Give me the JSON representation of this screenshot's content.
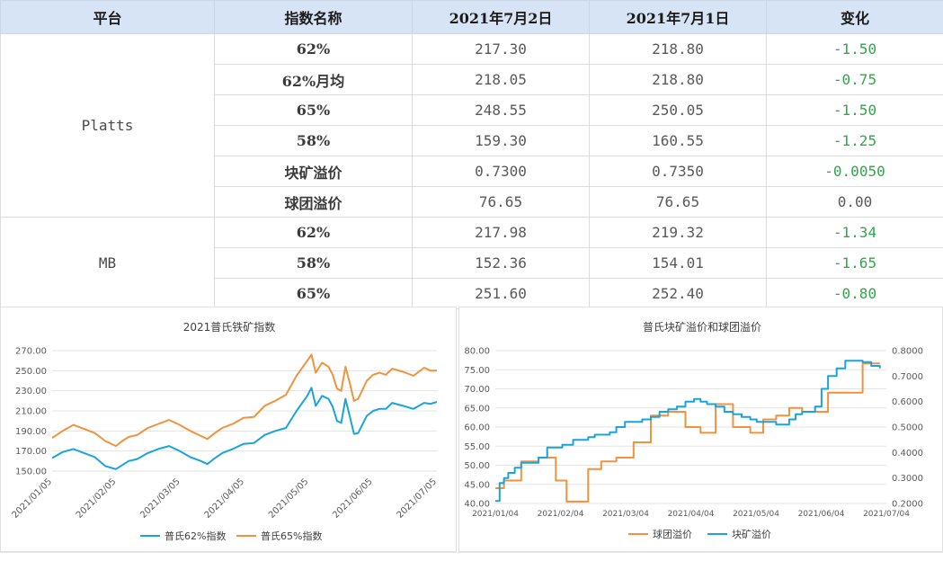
{
  "table": {
    "headers": [
      "平台",
      "指数名称",
      "2021年7月2日",
      "2021年7月1日",
      "变化"
    ],
    "groups": [
      {
        "platform": "Platts",
        "rows": [
          {
            "name": "62%",
            "jul2": "217.30",
            "jul1": "218.80",
            "change": "-1.50"
          },
          {
            "name": "62%月均",
            "jul2": "218.05",
            "jul1": "218.80",
            "change": "-0.75"
          },
          {
            "name": "65%",
            "jul2": "248.55",
            "jul1": "250.05",
            "change": "-1.50"
          },
          {
            "name": "58%",
            "jul2": "159.30",
            "jul1": "160.55",
            "change": "-1.25"
          },
          {
            "name": "块矿溢价",
            "jul2": "0.7300",
            "jul1": "0.7350",
            "change": "-0.0050"
          },
          {
            "name": "球团溢价",
            "jul2": "76.65",
            "jul1": "76.65",
            "change": "0.00"
          }
        ]
      },
      {
        "platform": "MB",
        "rows": [
          {
            "name": "62%",
            "jul2": "217.98",
            "jul1": "219.32",
            "change": "-1.34"
          },
          {
            "name": "58%",
            "jul2": "152.36",
            "jul1": "154.01",
            "change": "-1.65"
          },
          {
            "name": "65%",
            "jul2": "251.60",
            "jul1": "252.40",
            "change": "-0.80"
          }
        ]
      }
    ]
  },
  "colors": {
    "orange": "#f0923e",
    "blue": "#1aa3dd",
    "negative": "#2fa84a"
  },
  "chart_data": [
    {
      "type": "line",
      "title": "2021普氏铁矿指数",
      "xlabel": "",
      "ylabel": "",
      "x_ticks": [
        "2021/01/05",
        "2021/02/05",
        "2021/03/05",
        "2021/04/05",
        "2021/05/05",
        "2021/06/05",
        "2021/07/05"
      ],
      "ylim": [
        150,
        270
      ],
      "y_ticks": [
        "150.00",
        "170.00",
        "190.00",
        "210.00",
        "230.00",
        "250.00",
        "270.00"
      ],
      "grid": true,
      "legend": "bottom",
      "series": [
        {
          "name": "普氏62%指数",
          "color": "#1aa3dd",
          "x": [
            0,
            5,
            10,
            15,
            20,
            25,
            30,
            33,
            36,
            40,
            45,
            50,
            55,
            60,
            65,
            70,
            73,
            76,
            80,
            85,
            90,
            95,
            100,
            105,
            110,
            115,
            120,
            122,
            124,
            127,
            130,
            132,
            134,
            136,
            138,
            140,
            142,
            144,
            148,
            151,
            154,
            157,
            160,
            165,
            170,
            175,
            178,
            181
          ],
          "y": [
            163,
            169,
            172,
            168,
            164,
            155,
            152,
            156,
            160,
            162,
            168,
            172,
            175,
            170,
            164,
            160,
            157,
            162,
            168,
            172,
            177,
            178,
            186,
            190,
            193,
            210,
            225,
            233,
            215,
            225,
            222,
            214,
            200,
            198,
            222,
            205,
            187,
            188,
            205,
            210,
            212,
            212,
            218,
            215,
            212,
            218,
            217,
            219
          ]
        },
        {
          "name": "普氏65%指数",
          "color": "#f0923e",
          "x": [
            0,
            5,
            10,
            15,
            20,
            25,
            30,
            33,
            36,
            40,
            45,
            50,
            55,
            60,
            65,
            70,
            73,
            76,
            80,
            85,
            90,
            95,
            100,
            105,
            110,
            115,
            120,
            122,
            124,
            127,
            130,
            132,
            134,
            136,
            138,
            140,
            142,
            144,
            148,
            151,
            154,
            157,
            160,
            165,
            170,
            175,
            178,
            181
          ],
          "y": [
            183,
            190,
            196,
            192,
            188,
            180,
            175,
            180,
            184,
            186,
            193,
            197,
            201,
            196,
            190,
            185,
            182,
            187,
            193,
            197,
            203,
            204,
            215,
            220,
            226,
            245,
            260,
            266,
            248,
            258,
            254,
            246,
            232,
            230,
            254,
            238,
            220,
            222,
            240,
            246,
            248,
            246,
            252,
            249,
            245,
            253,
            250,
            250
          ]
        }
      ]
    },
    {
      "type": "line",
      "title": "普氏块矿溢价和球团溢价",
      "xlabel": "",
      "ylabel": "",
      "x_ticks": [
        "2021/01/04",
        "2021/02/04",
        "2021/03/04",
        "2021/04/04",
        "2021/05/04",
        "2021/06/04",
        "2021/07/04"
      ],
      "ylim": [
        40,
        80
      ],
      "y_ticks": [
        "40.00",
        "45.00",
        "50.00",
        "55.00",
        "60.00",
        "65.00",
        "70.00",
        "75.00",
        "80.00"
      ],
      "y2lim": [
        0.2,
        0.8
      ],
      "y2_ticks": [
        "0.2000",
        "0.3000",
        "0.4000",
        "0.5000",
        "0.6000",
        "0.7000",
        "0.8000"
      ],
      "grid": true,
      "legend": "bottom",
      "series": [
        {
          "name": "球团溢价",
          "color": "#f0923e",
          "axis": "left",
          "x": [
            0,
            2,
            4,
            6,
            9,
            12,
            16,
            20,
            24,
            28,
            31,
            33,
            36,
            40,
            43,
            46,
            49,
            53,
            56,
            60,
            64,
            68,
            72,
            76,
            80,
            84,
            88,
            92,
            95,
            98,
            102,
            106,
            110,
            114,
            118,
            121,
            124,
            127,
            130,
            133,
            136,
            139,
            142,
            145,
            148,
            151,
            154,
            158,
            162,
            166,
            170,
            174,
            178
          ],
          "y": [
            44,
            44,
            46,
            46,
            46,
            51,
            51,
            52,
            52,
            46,
            46,
            40.5,
            40.5,
            40.5,
            49,
            49,
            51,
            51,
            52,
            52,
            56,
            56,
            63,
            63,
            64,
            64,
            60,
            60,
            58.5,
            58.5,
            66,
            66,
            60,
            60,
            58.5,
            58.5,
            62,
            62,
            63,
            63,
            65,
            65,
            64,
            64,
            64,
            64,
            69,
            69,
            69,
            69,
            76.65,
            76.65,
            76.65
          ]
        },
        {
          "name": "块矿溢价",
          "color": "#1aa3dd",
          "axis": "right",
          "x": [
            0,
            2,
            4,
            6,
            9,
            12,
            16,
            20,
            24,
            28,
            31,
            33,
            36,
            40,
            43,
            46,
            49,
            53,
            56,
            60,
            64,
            68,
            72,
            76,
            80,
            84,
            88,
            92,
            95,
            98,
            102,
            106,
            110,
            114,
            118,
            121,
            124,
            127,
            130,
            133,
            136,
            139,
            142,
            145,
            148,
            151,
            154,
            158,
            162,
            166,
            170,
            174,
            178
          ],
          "y": [
            0.21,
            0.28,
            0.3,
            0.32,
            0.34,
            0.36,
            0.36,
            0.38,
            0.42,
            0.42,
            0.43,
            0.43,
            0.45,
            0.45,
            0.46,
            0.47,
            0.47,
            0.48,
            0.5,
            0.52,
            0.52,
            0.53,
            0.54,
            0.56,
            0.57,
            0.58,
            0.6,
            0.61,
            0.6,
            0.59,
            0.58,
            0.56,
            0.55,
            0.54,
            0.53,
            0.52,
            0.52,
            0.52,
            0.51,
            0.51,
            0.53,
            0.55,
            0.56,
            0.56,
            0.58,
            0.65,
            0.7,
            0.73,
            0.76,
            0.76,
            0.755,
            0.74,
            0.73
          ]
        }
      ]
    }
  ]
}
